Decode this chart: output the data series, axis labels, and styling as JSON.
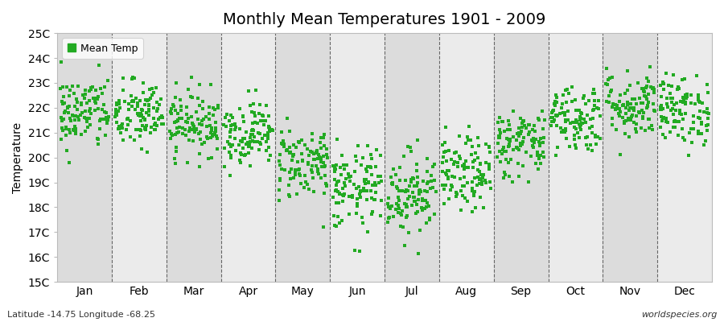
{
  "title": "Monthly Mean Temperatures 1901 - 2009",
  "ylabel": "Temperature",
  "ytick_labels": [
    "15C",
    "16C",
    "17C",
    "18C",
    "19C",
    "20C",
    "21C",
    "22C",
    "23C",
    "24C",
    "25C"
  ],
  "ytick_values": [
    15,
    16,
    17,
    18,
    19,
    20,
    21,
    22,
    23,
    24,
    25
  ],
  "ylim": [
    15,
    25
  ],
  "months": [
    "Jan",
    "Feb",
    "Mar",
    "Apr",
    "May",
    "Jun",
    "Jul",
    "Aug",
    "Sep",
    "Oct",
    "Nov",
    "Dec"
  ],
  "marker_color": "#22AA22",
  "marker": "s",
  "marker_size": 4,
  "bg_color": "#FFFFFF",
  "plot_bg_odd": "#DCDCDC",
  "plot_bg_even": "#EBEBEB",
  "grid_color": "#666666",
  "legend_label": "Mean Temp",
  "bottom_left": "Latitude -14.75 Longitude -68.25",
  "bottom_right": "worldspecies.org",
  "mean_temps": [
    21.8,
    21.7,
    21.4,
    21.0,
    19.8,
    18.7,
    18.6,
    19.3,
    20.6,
    21.6,
    22.1,
    21.9
  ],
  "std_temps": [
    0.75,
    0.7,
    0.65,
    0.65,
    0.75,
    0.85,
    0.85,
    0.75,
    0.7,
    0.7,
    0.7,
    0.7
  ],
  "n_years": 109,
  "seed": 42,
  "title_fontsize": 14,
  "axis_fontsize": 10,
  "ylabel_fontsize": 10
}
